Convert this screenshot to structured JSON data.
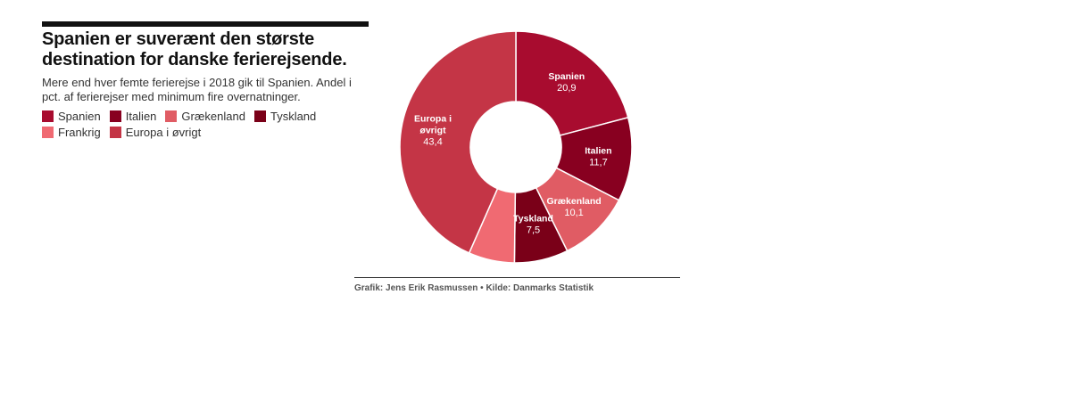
{
  "title": "Spanien er suverænt den største destination for danske ferierejsende.",
  "subtitle": "Mere end hver femte ferierejse i 2018 gik til Spanien. Andel i pct. af ferierejser med minimum fire overnatninger.",
  "source": "Grafik: Jens Erik Rasmussen • Kilde: Danmarks Statistik",
  "chart_data": {
    "type": "pie",
    "donut": true,
    "title": "Spanien er suverænt den største destination for danske ferierejsende.",
    "categories": [
      "Spanien",
      "Italien",
      "Grækenland",
      "Tyskland",
      "Frankrig",
      "Europa i øvrigt"
    ],
    "values": [
      20.9,
      11.7,
      10.1,
      7.5,
      6.4,
      43.4
    ],
    "labels": [
      "20,9",
      "11,7",
      "10,1",
      "7,5",
      "",
      "43,4"
    ],
    "colors": [
      "#a80c2f",
      "#880020",
      "#e05c64",
      "#7a0018",
      "#f06a72",
      "#c43546"
    ],
    "legend_position": "top-left"
  }
}
